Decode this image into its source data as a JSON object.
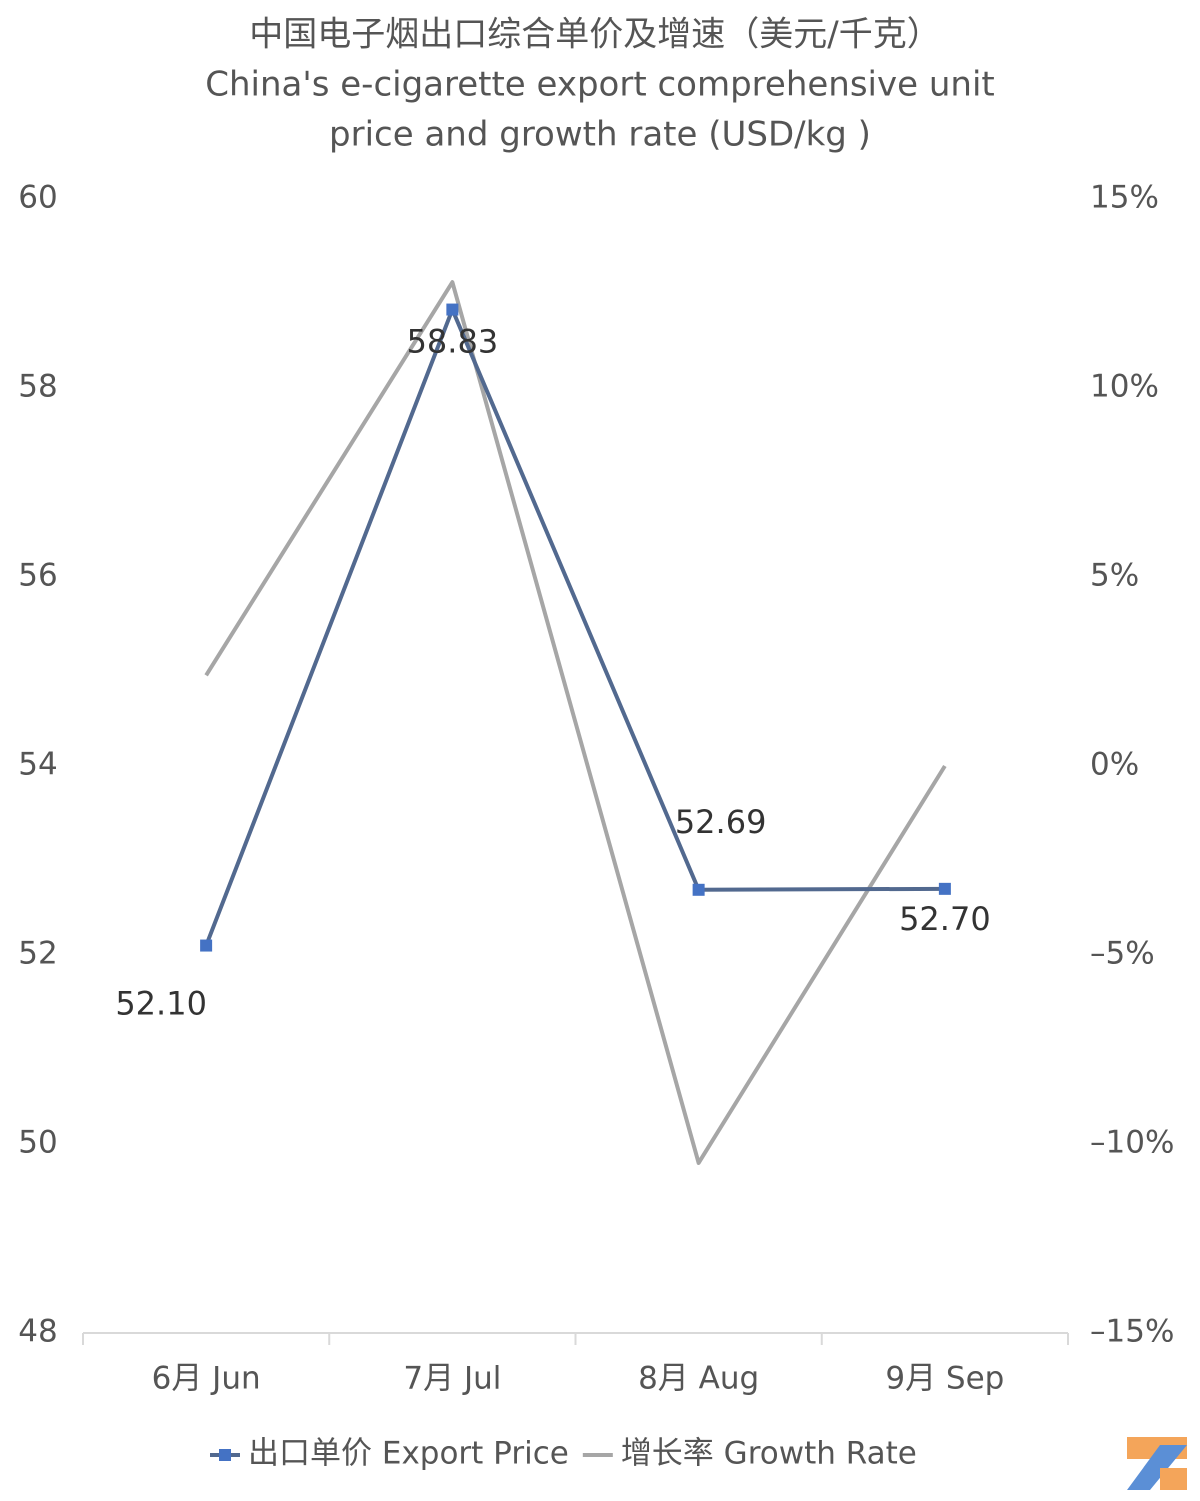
{
  "chart_data": {
    "type": "line",
    "title": "中国电子烟出口综合单价及增速（美元/千克）",
    "subtitle": [
      "China's e-cigarette export comprehensive unit",
      "price and growth rate (USD/kg )"
    ],
    "categories": [
      "6月 Jun",
      "7月 Jul",
      "8月 Aug",
      "9月 Sep"
    ],
    "series": [
      {
        "name": "出口单价 Export Price",
        "color": "#52698f",
        "marker_color": "#4472c4",
        "values": [
          52.1,
          58.83,
          52.69,
          52.7
        ],
        "value_labels": [
          "52.10",
          "58.83",
          "52.69",
          "52.70"
        ]
      },
      {
        "name": "增长率 Growth Rate",
        "color": "#a6a6a6",
        "axis": "y2",
        "values": [
          2.4,
          12.8,
          -10.5,
          0.0
        ]
      }
    ],
    "ylim": [
      48,
      60
    ],
    "yticks": [
      48,
      50,
      52,
      54,
      56,
      58,
      60
    ],
    "y2lim": [
      -15,
      15
    ],
    "y2ticks": [
      {
        "value": -15,
        "label": "–15%"
      },
      {
        "value": -10,
        "label": "–10%"
      },
      {
        "value": -5,
        "label": "–5%"
      },
      {
        "value": 0,
        "label": "0%"
      },
      {
        "value": 5,
        "label": "5%"
      },
      {
        "value": 10,
        "label": "10%"
      },
      {
        "value": 15,
        "label": "15%"
      }
    ],
    "grid": false,
    "legend": "bottom"
  }
}
